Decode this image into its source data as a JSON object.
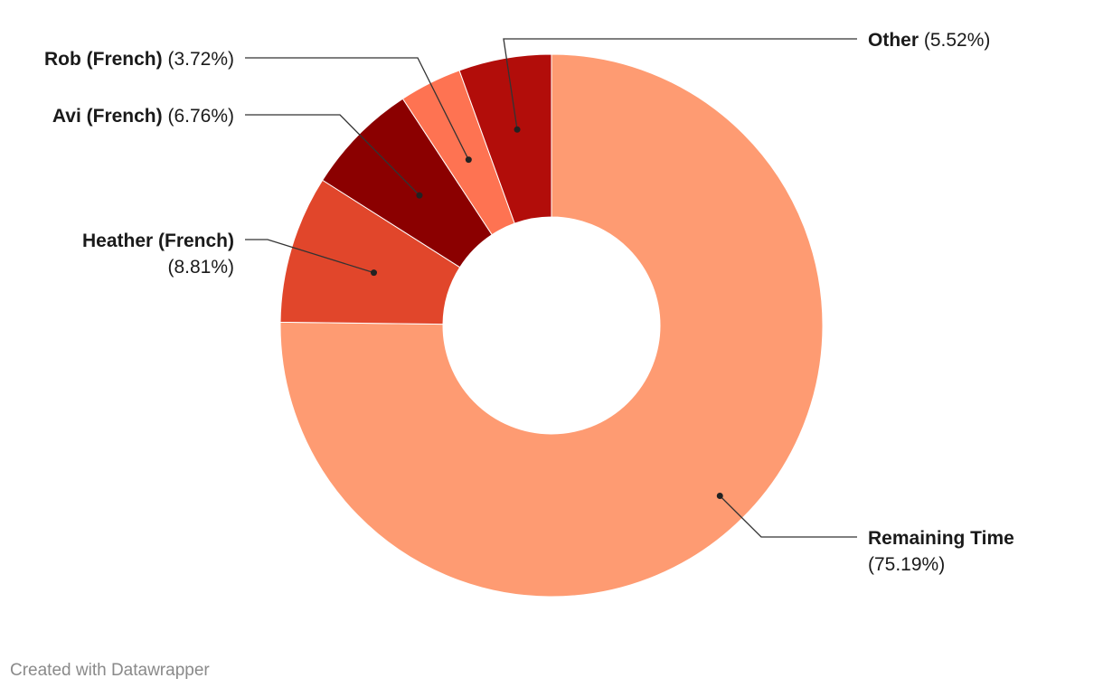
{
  "chart_data": {
    "type": "pie",
    "variant": "donut",
    "slices": [
      {
        "label": "Remaining Time",
        "value": 75.19,
        "display": "(75.19%)",
        "color": "#fe9b72"
      },
      {
        "label": "Heather (French)",
        "value": 8.81,
        "display": "(8.81%)",
        "color": "#e1462b"
      },
      {
        "label": "Avi (French)",
        "value": 6.76,
        "display": "(6.76%)",
        "color": "#8b0000"
      },
      {
        "label": "Rob (French)",
        "value": 3.72,
        "display": "(3.72%)",
        "color": "#fe7352"
      },
      {
        "label": "Other",
        "value": 5.52,
        "display": "(5.52%)",
        "color": "#b20d0a"
      }
    ]
  },
  "footer": {
    "credit": "Created with Datawrapper"
  }
}
